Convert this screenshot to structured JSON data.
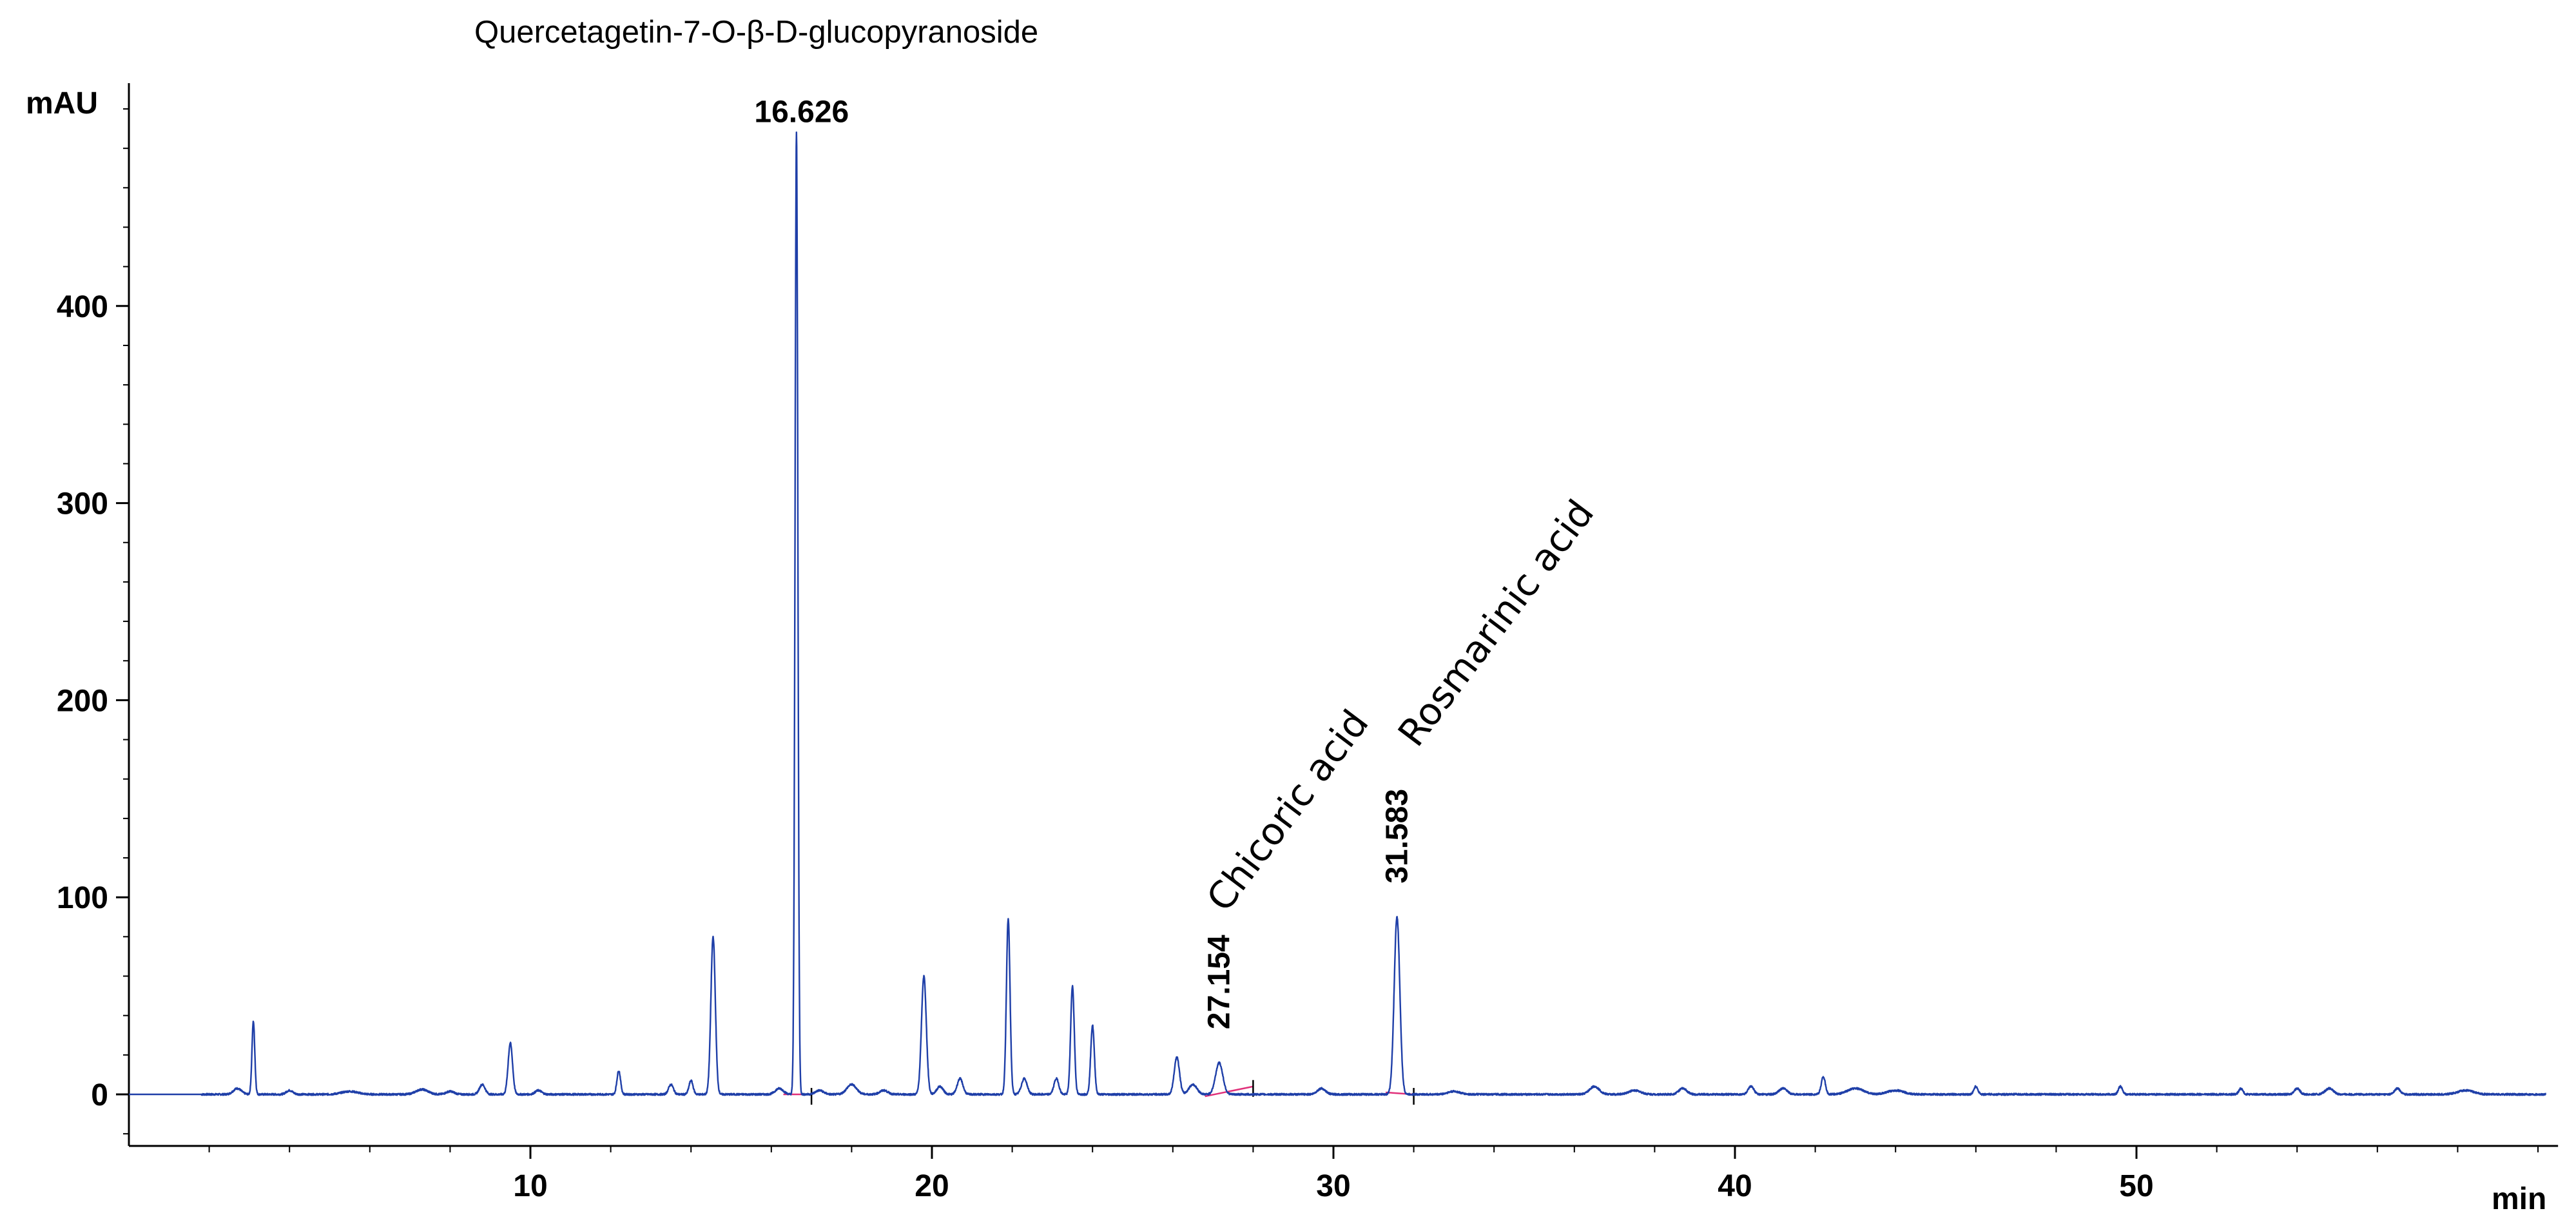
{
  "chart_data": {
    "type": "line",
    "title": "Quercetagetin-7-O-β-D-glucopyranoside",
    "ylabel": "mAU",
    "xlabel": "min",
    "xlim": [
      0,
      60.5
    ],
    "ylim": [
      -25,
      500
    ],
    "x_ticks": [
      10,
      20,
      30,
      40,
      50
    ],
    "y_ticks": [
      0,
      100,
      200,
      300,
      400
    ],
    "x_minor_step": 2,
    "y_minor_step": 20,
    "grid": false,
    "line_color": "#1f3fa8",
    "baseline_color": "#e0307a",
    "peak_labels": [
      {
        "text": "16.626",
        "x": 16.626,
        "y": 488
      },
      {
        "text": "27.154",
        "x": 27.154,
        "y": 16
      },
      {
        "text": "31.583",
        "x": 31.583,
        "y": 90
      }
    ],
    "compound_annotations": [
      {
        "text": "Chicoric acid",
        "x": 27.154
      },
      {
        "text": "Rosmarinic acid",
        "x": 31.583
      }
    ],
    "series": [
      {
        "peaks": [
          [
            2.7,
            3,
            0.1
          ],
          [
            3.1,
            37,
            0.035
          ],
          [
            4.0,
            2,
            0.08
          ],
          [
            5.5,
            1.5,
            0.2
          ],
          [
            7.3,
            2.5,
            0.15
          ],
          [
            8.0,
            1.5,
            0.1
          ],
          [
            8.8,
            5,
            0.07
          ],
          [
            9.5,
            26,
            0.055
          ],
          [
            10.2,
            2,
            0.08
          ],
          [
            12.2,
            12,
            0.045
          ],
          [
            13.5,
            5,
            0.06
          ],
          [
            14.0,
            7,
            0.05
          ],
          [
            14.55,
            80,
            0.055
          ],
          [
            16.2,
            3,
            0.1
          ],
          [
            16.626,
            488,
            0.035
          ],
          [
            17.2,
            2,
            0.1
          ],
          [
            18.0,
            5,
            0.12
          ],
          [
            18.8,
            2,
            0.1
          ],
          [
            19.8,
            60,
            0.06
          ],
          [
            20.2,
            4,
            0.08
          ],
          [
            20.7,
            8,
            0.07
          ],
          [
            21.9,
            89,
            0.045
          ],
          [
            22.3,
            8,
            0.07
          ],
          [
            23.1,
            8,
            0.06
          ],
          [
            23.5,
            55,
            0.045
          ],
          [
            24.0,
            35,
            0.045
          ],
          [
            26.1,
            19,
            0.065
          ],
          [
            26.5,
            5,
            0.1
          ],
          [
            27.154,
            16,
            0.09
          ],
          [
            29.7,
            3,
            0.1
          ],
          [
            31.583,
            90,
            0.07
          ],
          [
            33.0,
            1.5,
            0.15
          ],
          [
            36.5,
            4,
            0.12
          ],
          [
            37.5,
            2,
            0.15
          ],
          [
            38.7,
            3,
            0.1
          ],
          [
            40.4,
            4,
            0.07
          ],
          [
            41.2,
            3,
            0.1
          ],
          [
            42.2,
            9,
            0.05
          ],
          [
            43.0,
            3,
            0.2
          ],
          [
            44.0,
            2,
            0.2
          ],
          [
            46.0,
            4,
            0.05
          ],
          [
            49.6,
            4,
            0.05
          ],
          [
            52.6,
            3,
            0.05
          ],
          [
            54.0,
            3,
            0.07
          ],
          [
            54.8,
            3,
            0.1
          ],
          [
            56.5,
            3,
            0.07
          ],
          [
            58.2,
            2,
            0.2
          ]
        ]
      }
    ],
    "integration_baselines": [
      [
        16.3,
        0,
        17.0,
        0
      ],
      [
        26.8,
        -1,
        28.0,
        4
      ],
      [
        31.3,
        1,
        32.0,
        0
      ]
    ]
  }
}
